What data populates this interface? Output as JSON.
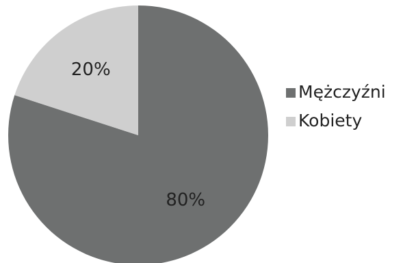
{
  "chart_data": {
    "type": "pie",
    "title": "",
    "categories": [
      "Mężczyźni",
      "Kobiety"
    ],
    "values": [
      80,
      20
    ],
    "data_labels": [
      "80%",
      "20%"
    ],
    "colors": [
      "#6e7070",
      "#cfcfcf"
    ],
    "legend": {
      "placement": "right",
      "entries": [
        "Mężczyźni",
        "Kobiety"
      ]
    },
    "start_angle_deg": 0,
    "direction": "clockwise"
  }
}
